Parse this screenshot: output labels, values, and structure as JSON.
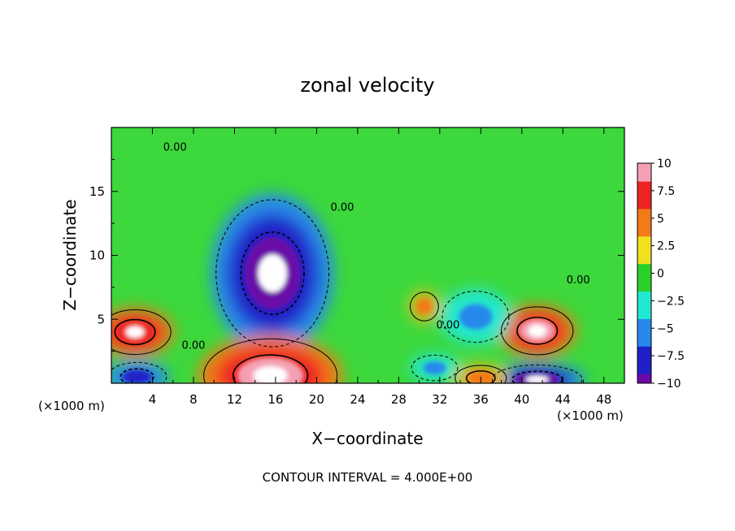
{
  "chart_data": {
    "type": "heatmap",
    "title": "zonal velocity",
    "xlabel": "X−coordinate",
    "ylabel": "Z−coordinate",
    "x_unit": "(×1000 m)",
    "y_unit": "(×1000 m)",
    "xlim": [
      0,
      50
    ],
    "ylim": [
      0,
      20
    ],
    "x_ticks": [
      4,
      8,
      12,
      16,
      20,
      24,
      28,
      32,
      36,
      40,
      44,
      48
    ],
    "y_ticks": [
      5,
      10,
      15
    ],
    "footer": "CONTOUR INTERVAL = 4.000E+00",
    "contour_labels": [
      {
        "text": "0.00",
        "x": 6.2,
        "z": 18.2
      },
      {
        "text": "0.00",
        "x": 22.5,
        "z": 13.5
      },
      {
        "text": "0.00",
        "x": 45.5,
        "z": 7.8
      },
      {
        "text": "0.00",
        "x": 32.8,
        "z": 4.3
      },
      {
        "text": "0.00",
        "x": 8.0,
        "z": 2.7
      }
    ],
    "colorbar": {
      "range": [
        -10,
        10
      ],
      "tick_labels": [
        "10",
        "7.5",
        "5",
        "2.5",
        "0",
        "−2.5",
        "−5",
        "−7.5",
        "−10"
      ],
      "tick_values": [
        10,
        7.5,
        5,
        2.5,
        0,
        -2.5,
        -5,
        -7.5,
        -10
      ],
      "colors": [
        "#f4a0b4",
        "#ee2424",
        "#f27a18",
        "#f0e020",
        "#28d028",
        "#20e8d0",
        "#2888ec",
        "#2020c8",
        "#6a0aa8"
      ]
    },
    "features": [
      {
        "kind": "min",
        "x": 15.7,
        "z": 8.6,
        "value": -10,
        "rx": 4.4,
        "rz": 4.6
      },
      {
        "kind": "max",
        "x": 15.5,
        "z": 0.6,
        "value": 10,
        "rx": 5.2,
        "rz": 2.3
      },
      {
        "kind": "max",
        "x": 2.3,
        "z": 4.0,
        "value": 8,
        "rx": 2.8,
        "rz": 1.4
      },
      {
        "kind": "max",
        "x": 41.5,
        "z": 4.1,
        "value": 9,
        "rx": 2.8,
        "rz": 1.5
      },
      {
        "kind": "min",
        "x": 41.5,
        "z": 0.3,
        "value": -9,
        "rx": 3.5,
        "rz": 0.9
      },
      {
        "kind": "min",
        "x": 2.5,
        "z": 0.5,
        "value": -7,
        "rx": 2.3,
        "rz": 0.9
      },
      {
        "kind": "max",
        "x": 36,
        "z": 0.4,
        "value": 6,
        "rx": 2.0,
        "rz": 0.8
      },
      {
        "kind": "min",
        "x": 35.5,
        "z": 5.2,
        "value": -4,
        "rx": 2.6,
        "rz": 1.6
      },
      {
        "kind": "max",
        "x": 30.5,
        "z": 6.0,
        "value": 5,
        "rx": 1.1,
        "rz": 0.9
      },
      {
        "kind": "min",
        "x": 31.5,
        "z": 1.2,
        "value": -4,
        "rx": 1.8,
        "rz": 0.8
      }
    ]
  }
}
